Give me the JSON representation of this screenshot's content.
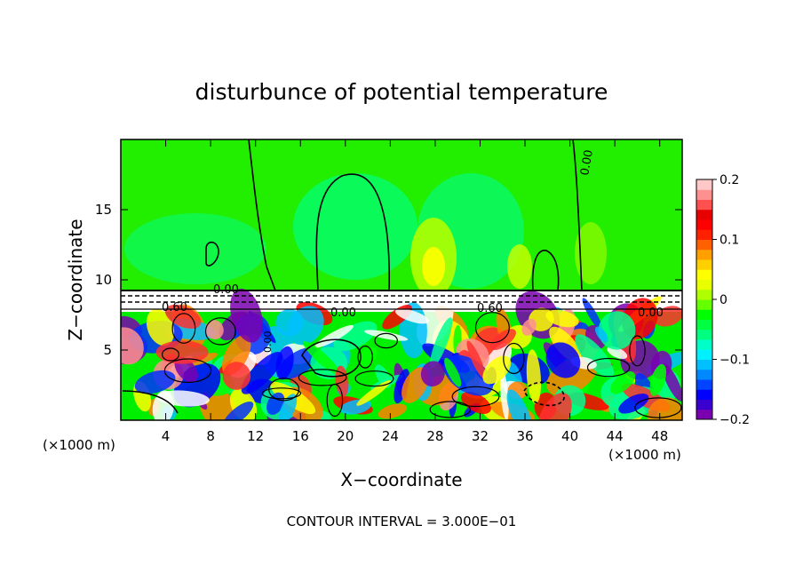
{
  "chart_data": {
    "type": "heatmap",
    "title": "disturbunce of potential temperature",
    "xlabel": "X−coordinate",
    "ylabel": "Z−coordinate",
    "x_unit": "(×1000 m)",
    "z_unit": "(×1000 m)",
    "footer": "CONTOUR INTERVAL = 3.000E−01",
    "xlim": [
      0,
      50
    ],
    "ylim": [
      0,
      20
    ],
    "x_ticks": [
      "4",
      "8",
      "12",
      "16",
      "20",
      "24",
      "28",
      "32",
      "36",
      "40",
      "44",
      "48"
    ],
    "y_ticks": [
      "5",
      "10",
      "15"
    ],
    "colorbar": {
      "range": [
        -0.2,
        0.2
      ],
      "tick_labels": [
        "0.2",
        "0.1",
        "0",
        "−0.1",
        "−0.2"
      ],
      "colors": [
        "#7a00b0",
        "#3a00d0",
        "#0000ff",
        "#0044ff",
        "#0088ff",
        "#00c0ff",
        "#00f0ff",
        "#00ffc8",
        "#00ff80",
        "#00ff40",
        "#00ff00",
        "#66ff00",
        "#b0ff00",
        "#e8ff00",
        "#ffff00",
        "#ffd000",
        "#ffa000",
        "#ff6000",
        "#ff2000",
        "#ff0000",
        "#e60000",
        "#ff5050",
        "#ff9090",
        "#ffc8c8"
      ]
    },
    "contour_labels": [
      {
        "text": "0.00"
      },
      {
        "text": "0.60"
      },
      {
        "text": "0.00"
      },
      {
        "text": "0.60"
      },
      {
        "text": "0.00"
      },
      {
        "text": "0.00"
      },
      {
        "text": "0.00"
      }
    ]
  }
}
